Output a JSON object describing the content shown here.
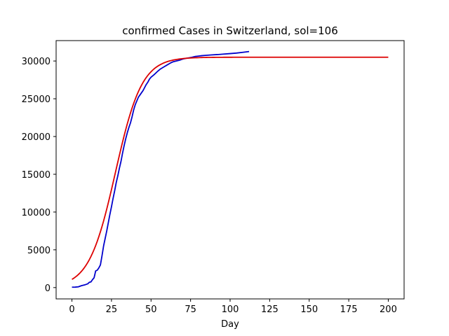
{
  "chart_data": {
    "type": "line",
    "title": "confirmed Cases in Switzerland, sol=106",
    "xlabel": "Day",
    "ylabel": "",
    "xlim": [
      -10,
      210
    ],
    "ylim": [
      -1500,
      32700
    ],
    "xticks": [
      0,
      25,
      50,
      75,
      100,
      125,
      150,
      175,
      200
    ],
    "yticks": [
      0,
      5000,
      10000,
      15000,
      20000,
      25000,
      30000
    ],
    "xtick_labels": [
      "0",
      "25",
      "50",
      "75",
      "100",
      "125",
      "150",
      "175",
      "200"
    ],
    "ytick_labels": [
      "0",
      "5000",
      "10000",
      "15000",
      "20000",
      "25000",
      "30000"
    ],
    "grid": false,
    "series": [
      {
        "color": "#0000cc",
        "style": "data",
        "points": [
          [
            0,
            50
          ],
          [
            2,
            60
          ],
          [
            4,
            100
          ],
          [
            6,
            250
          ],
          [
            8,
            350
          ],
          [
            10,
            500
          ],
          [
            11,
            700
          ],
          [
            12,
            750
          ],
          [
            13,
            1050
          ],
          [
            14,
            1300
          ],
          [
            15,
            2200
          ],
          [
            16,
            2300
          ],
          [
            17,
            2600
          ],
          [
            18,
            3000
          ],
          [
            19,
            4200
          ],
          [
            20,
            5500
          ],
          [
            21,
            6500
          ],
          [
            22,
            7500
          ],
          [
            23,
            8600
          ],
          [
            24,
            9700
          ],
          [
            25,
            10700
          ],
          [
            26,
            11800
          ],
          [
            27,
            12800
          ],
          [
            28,
            13900
          ],
          [
            29,
            14800
          ],
          [
            30,
            15800
          ],
          [
            31,
            16700
          ],
          [
            32,
            17800
          ],
          [
            33,
            18800
          ],
          [
            34,
            19700
          ],
          [
            35,
            20500
          ],
          [
            36,
            21200
          ],
          [
            37,
            21800
          ],
          [
            38,
            22600
          ],
          [
            39,
            23500
          ],
          [
            40,
            24200
          ],
          [
            41,
            24700
          ],
          [
            42,
            25200
          ],
          [
            43,
            25500
          ],
          [
            44,
            25800
          ],
          [
            45,
            26100
          ],
          [
            46,
            26500
          ],
          [
            47,
            26900
          ],
          [
            48,
            27200
          ],
          [
            49,
            27600
          ],
          [
            50,
            27850
          ],
          [
            52,
            28200
          ],
          [
            54,
            28600
          ],
          [
            56,
            28950
          ],
          [
            58,
            29200
          ],
          [
            60,
            29450
          ],
          [
            62,
            29700
          ],
          [
            64,
            29900
          ],
          [
            66,
            30000
          ],
          [
            68,
            30100
          ],
          [
            70,
            30250
          ],
          [
            72,
            30350
          ],
          [
            74,
            30420
          ],
          [
            76,
            30500
          ],
          [
            78,
            30600
          ],
          [
            80,
            30650
          ],
          [
            82,
            30700
          ],
          [
            85,
            30750
          ],
          [
            88,
            30800
          ],
          [
            92,
            30850
          ],
          [
            96,
            30920
          ],
          [
            100,
            30980
          ],
          [
            104,
            31050
          ],
          [
            108,
            31150
          ],
          [
            112,
            31250
          ]
        ]
      },
      {
        "color": "#dd0000",
        "style": "fit",
        "model": "logistic",
        "K": 30500,
        "r": 0.12,
        "x0": 27.5,
        "x_range": [
          0,
          200
        ]
      }
    ]
  }
}
